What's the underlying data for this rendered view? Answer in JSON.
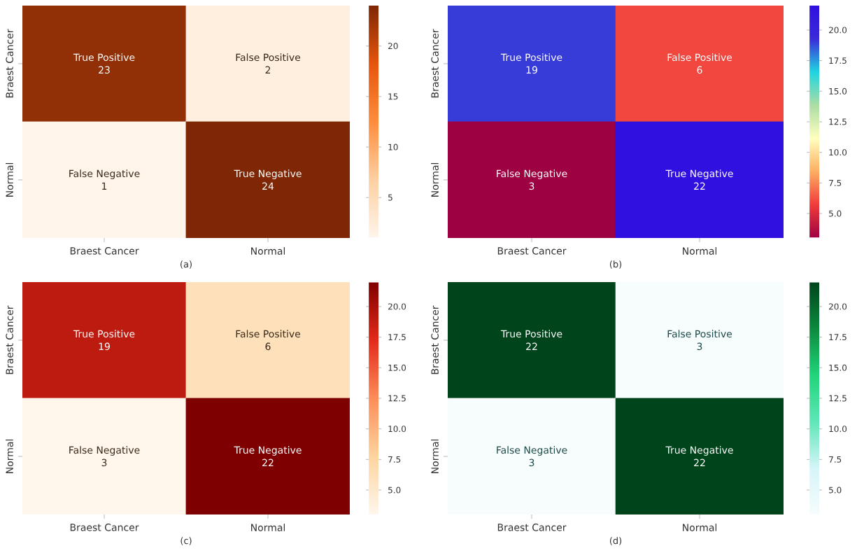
{
  "chart_data": [
    {
      "type": "heatmap",
      "categories": [
        "Braest Cancer",
        "Normal"
      ],
      "y_categories": [
        "Braest Cancer",
        "Normal"
      ],
      "cells": [
        [
          23,
          2
        ],
        [
          1,
          24
        ]
      ],
      "data_labels": true,
      "clim": [
        1,
        24
      ],
      "cticks": [
        5,
        10,
        15,
        20
      ],
      "annotations": [
        "True Positive",
        "False Positive",
        "False Negative",
        "True Negative",
        "(a)"
      ]
    },
    {
      "type": "heatmap",
      "categories": [
        "Braest Cancer",
        "Normal"
      ],
      "y_categories": [
        "Braest Cancer",
        "Normal"
      ],
      "cells": [
        [
          19,
          6
        ],
        [
          3,
          22
        ]
      ],
      "data_labels": true,
      "clim": [
        3,
        22
      ],
      "cticks": [
        {
          "value": 5,
          "label": "5.0"
        },
        7.5,
        {
          "value": 10,
          "label": "10.0"
        },
        12.5,
        {
          "value": 15,
          "label": "15.0"
        },
        17.5,
        {
          "value": 20,
          "label": "20.0"
        }
      ],
      "annotations": [
        "True Positive",
        "False Positive",
        "False Negative",
        "True Negative",
        "(b)"
      ]
    },
    {
      "type": "heatmap",
      "categories": [
        "Braest Cancer",
        "Normal"
      ],
      "y_categories": [
        "Braest Cancer",
        "Normal"
      ],
      "cells": [
        [
          19,
          6
        ],
        [
          3,
          22
        ]
      ],
      "data_labels": true,
      "clim": [
        3,
        22
      ],
      "cticks": [
        {
          "value": 5,
          "label": "5.0"
        },
        7.5,
        {
          "value": 10,
          "label": "10.0"
        },
        12.5,
        {
          "value": 15,
          "label": "15.0"
        },
        17.5,
        {
          "value": 20,
          "label": "20.0"
        }
      ],
      "annotations": [
        "True Positive",
        "False Positive",
        "False Negative",
        "True Negative",
        "(c)"
      ]
    },
    {
      "type": "heatmap",
      "categories": [
        "Braest Cancer",
        "Normal"
      ],
      "y_categories": [
        "Braest Cancer",
        "Normal"
      ],
      "cells": [
        [
          22,
          3
        ],
        [
          3,
          22
        ]
      ],
      "data_labels": true,
      "clim": [
        3,
        22
      ],
      "cticks": [
        {
          "value": 5,
          "label": "5.0"
        },
        7.5,
        {
          "value": 10,
          "label": "10.0"
        },
        12.5,
        {
          "value": 15,
          "label": "15.0"
        },
        17.5,
        {
          "value": 20,
          "label": "20.0"
        }
      ],
      "annotations": [
        "True Positive",
        "False Positive",
        "False Negative",
        "True Negative",
        "(d)"
      ]
    }
  ]
}
